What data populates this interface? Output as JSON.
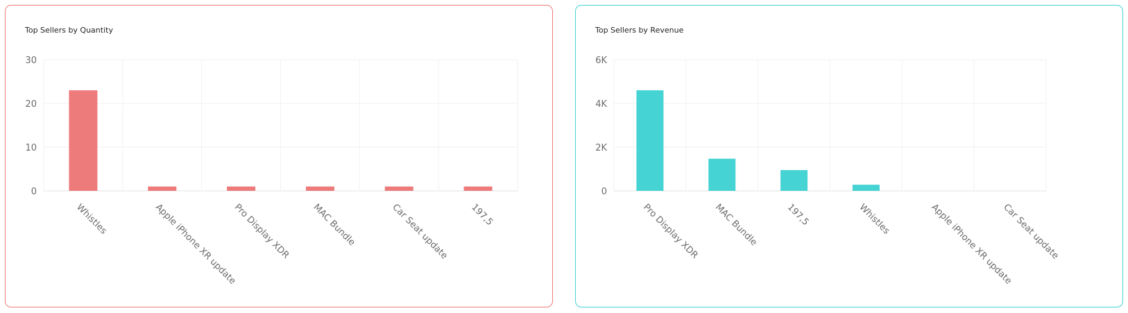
{
  "charts": [
    {
      "id": "quantity",
      "title": "Top Sellers by Quantity",
      "color": "#ee7b7b",
      "border_color": "#ee7b7b",
      "y_ticks": [
        "30",
        "20",
        "10",
        "0"
      ]
    },
    {
      "id": "revenue",
      "title": "Top Sellers by Revenue",
      "color": "#45d3d4",
      "border_color": "#45d3d4",
      "y_ticks": [
        "6K",
        "4K",
        "2K",
        "0"
      ]
    }
  ],
  "chart_data": [
    {
      "type": "bar",
      "title": "Top Sellers by Quantity",
      "categories": [
        "Whistles",
        "Apple iPhone XR update",
        "Pro Display XDR",
        "MAC Bundle",
        "Car Seat update",
        "197,5"
      ],
      "values": [
        23,
        1,
        1,
        1,
        1,
        1
      ],
      "ylim": [
        0,
        30
      ],
      "grid": true,
      "xlabel": "",
      "ylabel": ""
    },
    {
      "type": "bar",
      "title": "Top Sellers by Revenue",
      "categories": [
        "Pro Display XDR",
        "MAC Bundle",
        "197,5",
        "Whistles",
        "Apple iPhone XR update",
        "Car Seat update"
      ],
      "values": [
        4600,
        1470,
        950,
        280,
        0,
        0
      ],
      "ylim": [
        0,
        6000
      ],
      "grid": true,
      "xlabel": "",
      "ylabel": ""
    }
  ]
}
